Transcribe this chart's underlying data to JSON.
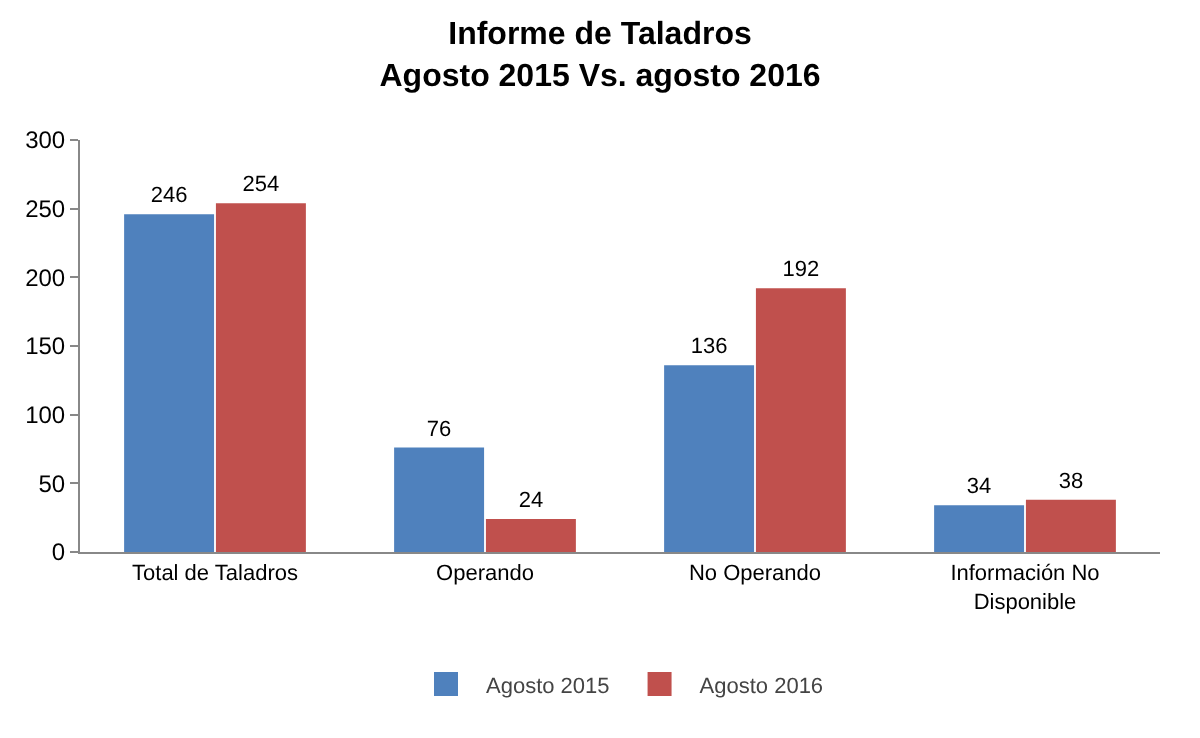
{
  "chart_data": {
    "type": "bar",
    "title": "Informe de Taladros\nAgosto 2015 Vs. agosto 2016",
    "categories": [
      "Total de Taladros",
      "Operando",
      "No Operando",
      "Información No Disponible"
    ],
    "series": [
      {
        "name": "Agosto 2015",
        "color": "#4f81bd",
        "values": [
          246,
          76,
          136,
          34
        ]
      },
      {
        "name": "Agosto 2016",
        "color": "#c0504d",
        "values": [
          254,
          24,
          192,
          38
        ]
      }
    ],
    "ylim": [
      0,
      300
    ],
    "yticks": [
      0,
      50,
      100,
      150,
      200,
      250,
      300
    ],
    "grid": false,
    "legend": "bottom",
    "data_labels": true
  }
}
